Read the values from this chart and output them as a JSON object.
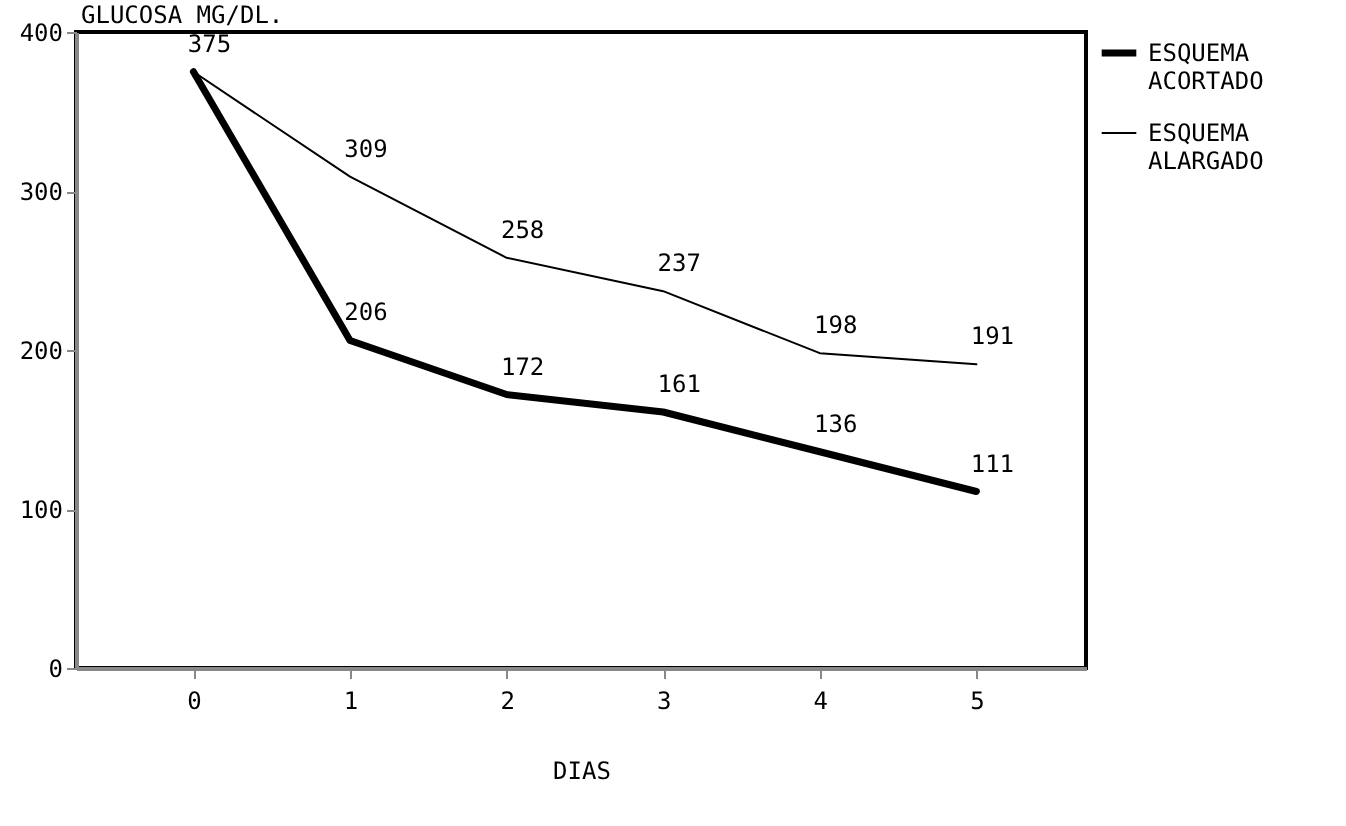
{
  "chart_data": {
    "type": "line",
    "ylabel": "GLUCOSA MG/DL.",
    "xlabel": "DIAS",
    "x": [
      0,
      1,
      2,
      3,
      4,
      5
    ],
    "series": [
      {
        "name": "ESQUEMA ACORTADO",
        "color": "#000000",
        "values": [
          375,
          206,
          172,
          161,
          136,
          111
        ],
        "value_labels": [
          "375",
          "206",
          "172",
          "161",
          "136",
          "111"
        ]
      },
      {
        "name": "ESQUEMA ALARGADO",
        "color": "#000000",
        "values": [
          375,
          309,
          258,
          237,
          198,
          191
        ],
        "value_labels": [
          null,
          "309",
          "258",
          "237",
          "198",
          "191"
        ]
      }
    ],
    "xlim": [
      -0.75,
      5.7
    ],
    "xticks": [
      0,
      1,
      2,
      3,
      4,
      5
    ],
    "ylim": [
      0,
      400
    ],
    "yticks": [
      0,
      100,
      200,
      300,
      400
    ],
    "grid": false,
    "legend": "right",
    "marker": "none",
    "line_style": "solid"
  }
}
